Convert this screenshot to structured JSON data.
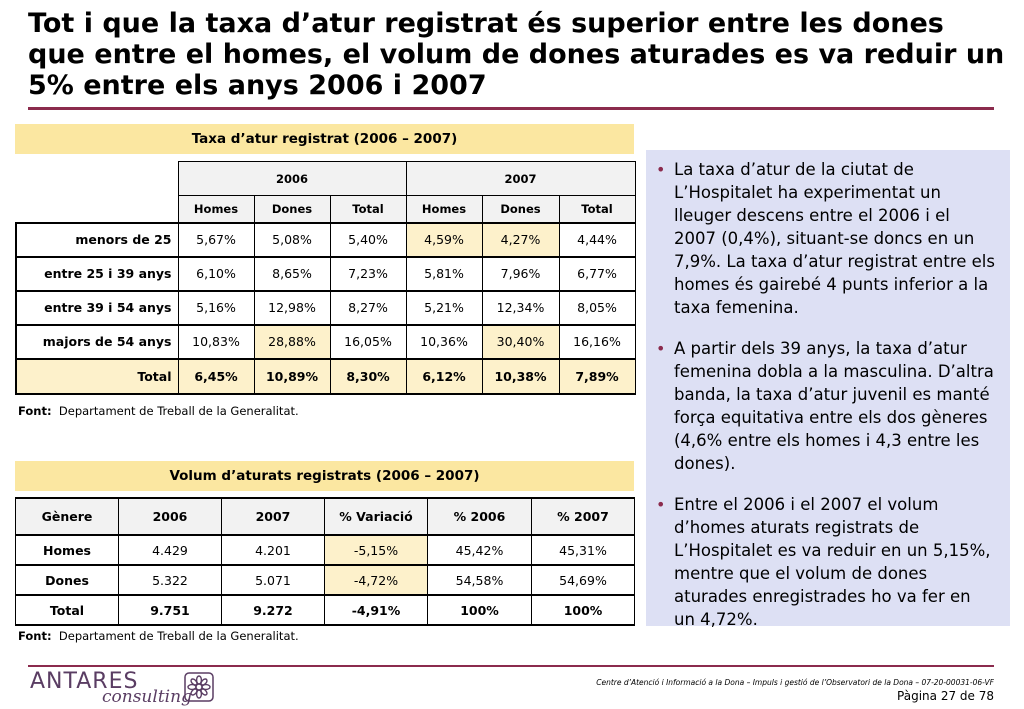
{
  "title": "Tot i que la taxa d’atur registrat és superior entre les dones que entre el homes, el volum de dones aturades es va reduir un 5% entre els anys 2006 i 2007",
  "table1": {
    "caption": "Taxa d’atur registrat (2006 – 2007)",
    "years": [
      "2006",
      "2007"
    ],
    "subheaders": [
      "Homes",
      "Dones",
      "Total",
      "Homes",
      "Dones",
      "Total"
    ],
    "rows": [
      {
        "label": "menors de 25",
        "values": [
          "5,67%",
          "5,08%",
          "5,40%",
          "4,59%",
          "4,27%",
          "4,44%"
        ]
      },
      {
        "label": "entre 25 i 39 anys",
        "values": [
          "6,10%",
          "8,65%",
          "7,23%",
          "5,81%",
          "7,96%",
          "6,77%"
        ]
      },
      {
        "label": "entre 39 i 54 anys",
        "values": [
          "5,16%",
          "12,98%",
          "8,27%",
          "5,21%",
          "12,34%",
          "8,05%"
        ]
      },
      {
        "label": "majors de 54 anys",
        "values": [
          "10,83%",
          "28,88%",
          "16,05%",
          "10,36%",
          "30,40%",
          "16,16%"
        ]
      },
      {
        "label": "Total",
        "values": [
          "6,45%",
          "10,89%",
          "8,30%",
          "6,12%",
          "10,38%",
          "7,89%"
        ]
      }
    ],
    "source_label": "Font:",
    "source_text": "Departament de Treball de la Generalitat."
  },
  "table2": {
    "caption": "Volum d’aturats registrats (2006 – 2007)",
    "headers": [
      "Gènere",
      "2006",
      "2007",
      "% Variació",
      "% 2006",
      "% 2007"
    ],
    "rows": [
      {
        "values": [
          "Homes",
          "4.429",
          "4.201",
          "-5,15%",
          "45,42%",
          "45,31%"
        ]
      },
      {
        "values": [
          "Dones",
          "5.322",
          "5.071",
          "-4,72%",
          "54,58%",
          "54,69%"
        ]
      },
      {
        "values": [
          "Total",
          "9.751",
          "9.272",
          "-4,91%",
          "100%",
          "100%"
        ]
      }
    ],
    "source_label": "Font:",
    "source_text": "Departament de Treball de la Generalitat."
  },
  "bullets": [
    "La taxa d’atur de la ciutat de L’Hospitalet ha experimentat un lleuger descens entre el 2006 i el 2007 (0,4%), situant-se doncs en un 7,9%. La taxa d’atur registrat entre els homes és gairebé 4 punts inferior a la taxa femenina.",
    "A partir dels 39 anys, la taxa d’atur femenina dobla a la masculina. D’altra banda, la taxa d’atur juvenil es manté força equitativa entre els dos gèneres (4,6% entre els homes i 4,3 entre les dones).",
    "Entre el 2006 i el 2007 el volum d’homes aturats registrats de L’Hospitalet es va reduir en un 5,15%, mentre que el volum de dones aturades enregistrades ho va fer en un 4,72%."
  ],
  "footer": {
    "logo_main": "ANTARES",
    "logo_sub": "consulting",
    "text": "Centre d’Atenció i Informació a la Dona – Impuls i gestió de l’Observatori de la Dona – 07-20-00031-06-VF",
    "page": "Pàgina 27 de 78"
  },
  "colors": {
    "accent": "#8b2b4d",
    "caption_bg": "#fbe7a1",
    "highlight_bg": "#fdf1cb",
    "panel_bg": "#dde0f4"
  }
}
